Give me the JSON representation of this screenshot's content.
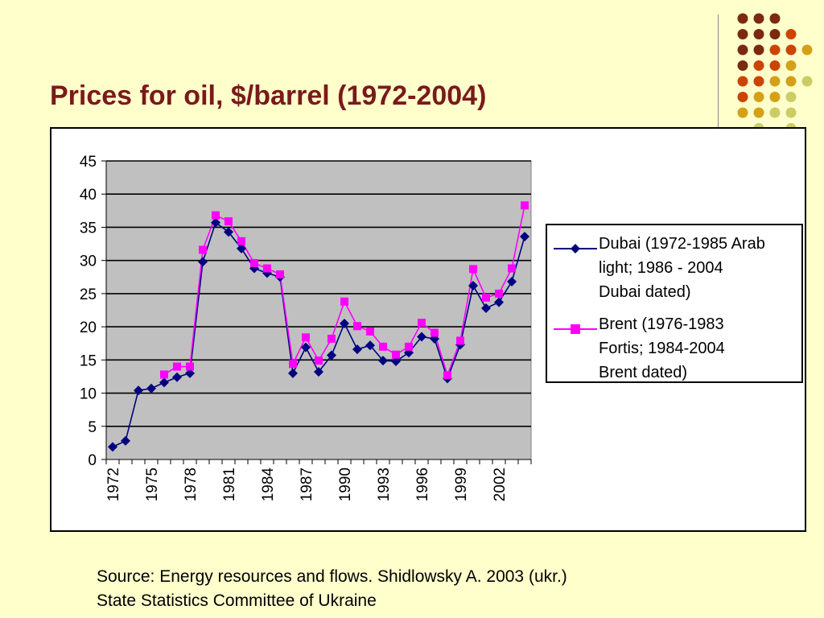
{
  "slide": {
    "title": "Prices for oil, $/barrel (1972-2004)",
    "source_line1": "Source: Energy resources and flows. Shidlowsky A. 2003 (ukr.)",
    "source_line2": "State Statistics Committee of Ukraine",
    "background_color": "#ffffcc",
    "title_color": "#7a1a1a",
    "decor_dot_colors": [
      "#7b2a0f",
      "#cc4400",
      "#d4a017",
      "#cccc66"
    ]
  },
  "chart_data": {
    "type": "line",
    "title": "",
    "xlabel": "",
    "ylabel": "",
    "ylim": [
      0,
      45
    ],
    "yticks": [
      0,
      5,
      10,
      15,
      20,
      25,
      30,
      35,
      40,
      45
    ],
    "x": [
      1972,
      1973,
      1974,
      1975,
      1976,
      1977,
      1978,
      1979,
      1980,
      1981,
      1982,
      1983,
      1984,
      1985,
      1986,
      1987,
      1988,
      1989,
      1990,
      1991,
      1992,
      1993,
      1994,
      1995,
      1996,
      1997,
      1998,
      1999,
      2000,
      2001,
      2002,
      2003,
      2004
    ],
    "xtick_labels": [
      "1972",
      "1975",
      "1978",
      "1981",
      "1984",
      "1987",
      "1990",
      "1993",
      "1996",
      "1999",
      "2002"
    ],
    "plot_background": "#c0c0c0",
    "grid": true,
    "legend_position": "right",
    "series": [
      {
        "name": "Dubai (1972-1985 Arab light; 1986 - 2004 Dubai dated)",
        "legend_lines": [
          "Dubai (1972-1985 Arab",
          "light; 1986 - 2004",
          "Dubai dated)"
        ],
        "color": "#000080",
        "marker": "diamond",
        "values": [
          1.9,
          2.8,
          10.4,
          10.7,
          11.6,
          12.4,
          13.0,
          29.8,
          35.7,
          34.3,
          31.8,
          28.8,
          28.1,
          27.5,
          13.0,
          16.9,
          13.2,
          15.7,
          20.5,
          16.6,
          17.2,
          14.9,
          14.8,
          16.1,
          18.5,
          18.2,
          12.2,
          17.3,
          26.2,
          22.8,
          23.7,
          26.8,
          33.6
        ]
      },
      {
        "name": "Brent (1976-1983 Fortis; 1984-2004 Brent dated)",
        "legend_lines": [
          "Brent (1976-1983",
          "Fortis; 1984-2004",
          "Brent dated)"
        ],
        "color": "#ff00ff",
        "marker": "square",
        "values": [
          null,
          null,
          null,
          null,
          12.8,
          14.0,
          14.0,
          31.6,
          36.8,
          35.9,
          32.9,
          29.6,
          28.8,
          27.9,
          14.4,
          18.4,
          14.9,
          18.2,
          23.8,
          20.1,
          19.3,
          17.0,
          15.8,
          17.0,
          20.6,
          19.1,
          12.7,
          17.9,
          28.7,
          24.4,
          25.0,
          28.8,
          38.3
        ]
      }
    ]
  }
}
